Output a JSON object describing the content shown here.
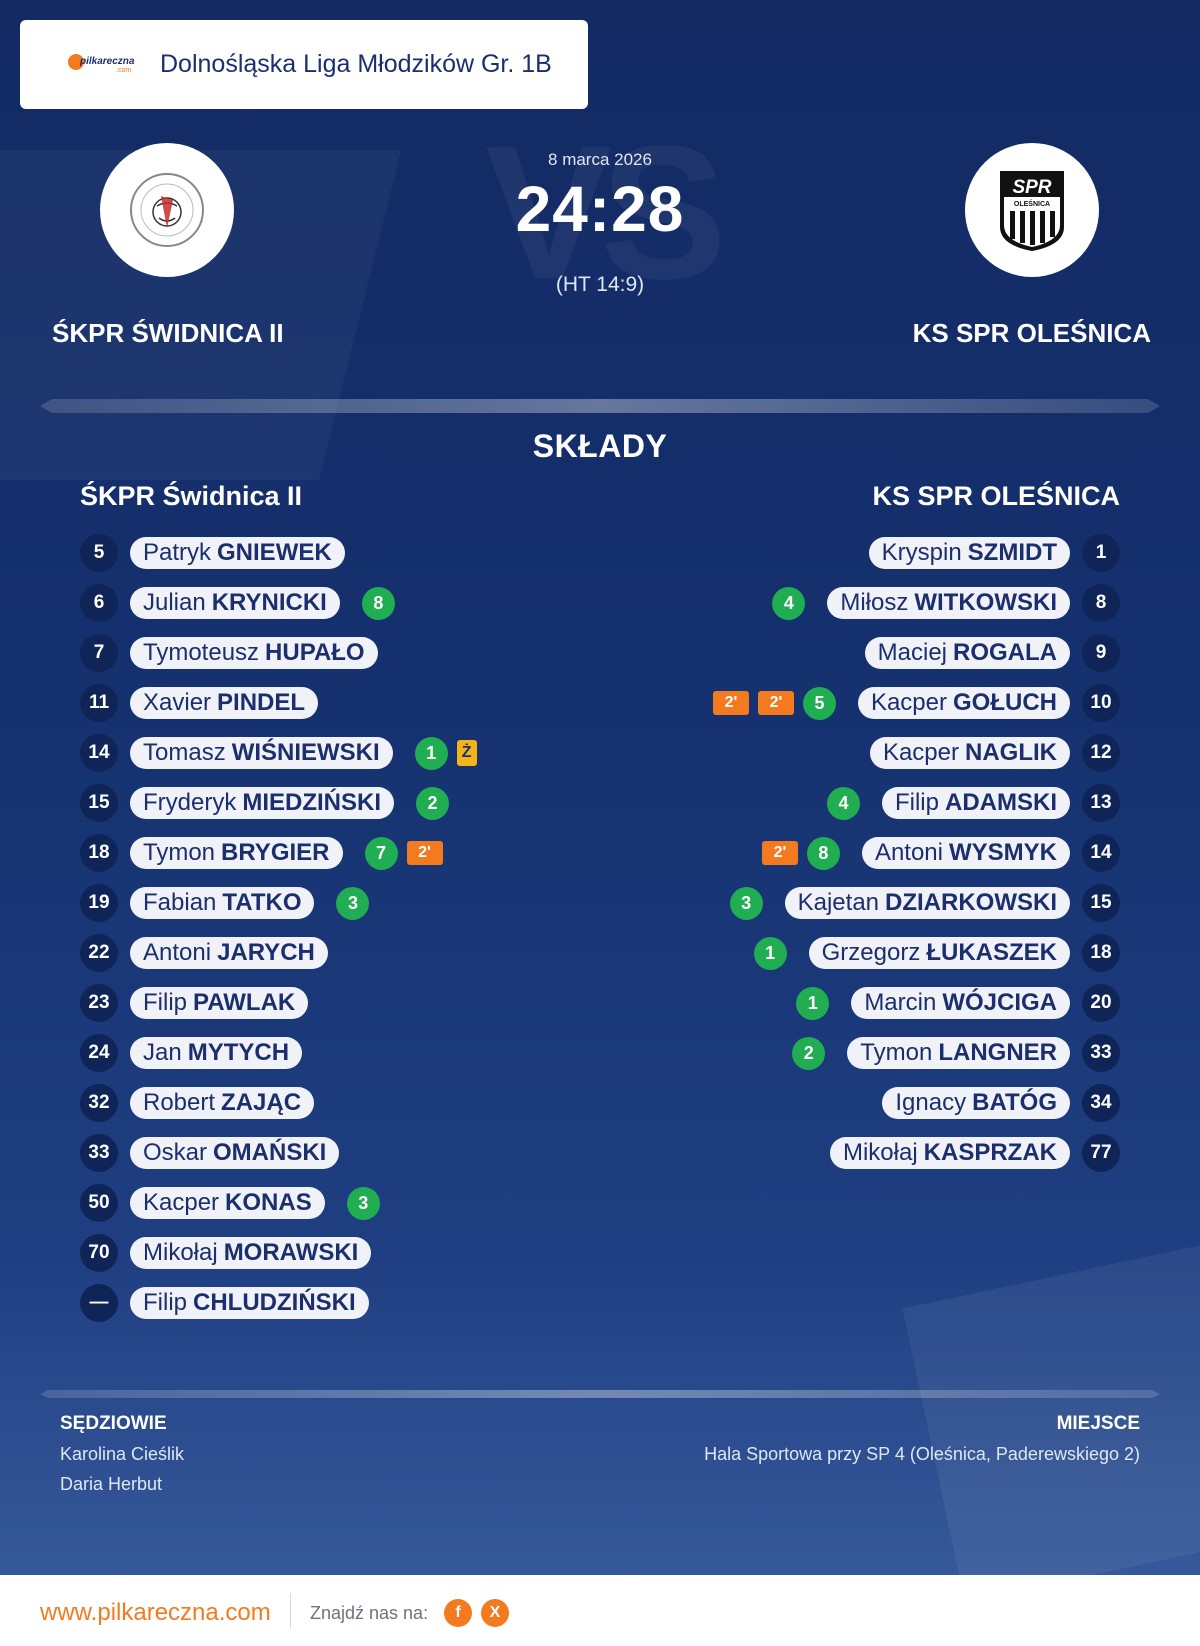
{
  "league": {
    "title": "Dolnośląska Liga Młodzików Gr. 1B",
    "logo_text": "pilkareczna",
    "logo_sub": ".com"
  },
  "match": {
    "date": "8 marca 2026",
    "score": "24:28",
    "half_time": "(HT 14:9)",
    "watermark": "VS"
  },
  "home": {
    "name": "ŚKPR ŚWIDNICA II",
    "lineup_title": "ŚKPR Świdnica II",
    "players": [
      {
        "num": "5",
        "first": "Patryk",
        "last": "GNIEWEK",
        "goals": "",
        "cards": []
      },
      {
        "num": "6",
        "first": "Julian",
        "last": "KRYNICKI",
        "goals": "8",
        "cards": []
      },
      {
        "num": "7",
        "first": "Tymoteusz",
        "last": "HUPAŁO",
        "goals": "",
        "cards": []
      },
      {
        "num": "11",
        "first": "Xavier",
        "last": "PINDEL",
        "goals": "",
        "cards": []
      },
      {
        "num": "14",
        "first": "Tomasz",
        "last": "WIŚNIEWSKI",
        "goals": "1",
        "cards": [
          {
            "type": "yellow",
            "text": "Ż"
          }
        ]
      },
      {
        "num": "15",
        "first": "Fryderyk",
        "last": "MIEDZIŃSKI",
        "goals": "2",
        "cards": []
      },
      {
        "num": "18",
        "first": "Tymon",
        "last": "BRYGIER",
        "goals": "7",
        "cards": [
          {
            "type": "susp",
            "text": "2'"
          }
        ]
      },
      {
        "num": "19",
        "first": "Fabian",
        "last": "TATKO",
        "goals": "3",
        "cards": []
      },
      {
        "num": "22",
        "first": "Antoni",
        "last": "JARYCH",
        "goals": "",
        "cards": []
      },
      {
        "num": "23",
        "first": "Filip",
        "last": "PAWLAK",
        "goals": "",
        "cards": []
      },
      {
        "num": "24",
        "first": "Jan",
        "last": "MYTYCH",
        "goals": "",
        "cards": []
      },
      {
        "num": "32",
        "first": "Robert",
        "last": "ZAJĄC",
        "goals": "",
        "cards": []
      },
      {
        "num": "33",
        "first": "Oskar",
        "last": "OMAŃSKI",
        "goals": "",
        "cards": []
      },
      {
        "num": "50",
        "first": "Kacper",
        "last": "KONAS",
        "goals": "3",
        "cards": []
      },
      {
        "num": "70",
        "first": "Mikołaj",
        "last": "MORAWSKI",
        "goals": "",
        "cards": []
      },
      {
        "num": "—",
        "first": "Filip",
        "last": "CHLUDZIŃSKI",
        "goals": "",
        "cards": []
      }
    ]
  },
  "away": {
    "name": "KS SPR OLEŚNICA",
    "lineup_title": "KS SPR OLEŚNICA",
    "logo_text": "SPR",
    "logo_sub": "OLEŚNICA",
    "players": [
      {
        "num": "1",
        "first": "Kryspin",
        "last": "SZMIDT",
        "goals": "",
        "cards": []
      },
      {
        "num": "8",
        "first": "Miłosz",
        "last": "WITKOWSKI",
        "goals": "4",
        "cards": []
      },
      {
        "num": "9",
        "first": "Maciej",
        "last": "ROGALA",
        "goals": "",
        "cards": []
      },
      {
        "num": "10",
        "first": "Kacper",
        "last": "GOŁUCH",
        "goals": "5",
        "cards": [
          {
            "type": "susp",
            "text": "2'"
          },
          {
            "type": "susp",
            "text": "2'"
          }
        ]
      },
      {
        "num": "12",
        "first": "Kacper",
        "last": "NAGLIK",
        "goals": "",
        "cards": []
      },
      {
        "num": "13",
        "first": "Filip",
        "last": "ADAMSKI",
        "goals": "4",
        "cards": []
      },
      {
        "num": "14",
        "first": "Antoni",
        "last": "WYSMYK",
        "goals": "8",
        "cards": [
          {
            "type": "susp",
            "text": "2'"
          }
        ]
      },
      {
        "num": "15",
        "first": "Kajetan",
        "last": "DZIARKOWSKI",
        "goals": "3",
        "cards": []
      },
      {
        "num": "18",
        "first": "Grzegorz",
        "last": "ŁUKASZEK",
        "goals": "1",
        "cards": []
      },
      {
        "num": "20",
        "first": "Marcin",
        "last": "WÓJCIGA",
        "goals": "1",
        "cards": []
      },
      {
        "num": "33",
        "first": "Tymon",
        "last": "LANGNER",
        "goals": "2",
        "cards": []
      },
      {
        "num": "34",
        "first": "Ignacy",
        "last": "BATÓG",
        "goals": "",
        "cards": []
      },
      {
        "num": "77",
        "first": "Mikołaj",
        "last": "KASPRZAK",
        "goals": "",
        "cards": []
      }
    ]
  },
  "section_title": "SKŁADY",
  "referees": {
    "label": "SĘDZIOWIE",
    "names": [
      "Karolina Cieślik",
      "Daria Herbut"
    ]
  },
  "venue": {
    "label": "MIEJSCE",
    "text": "Hala Sportowa przy SP 4 (Oleśnica, Paderewskiego 2)"
  },
  "footer": {
    "site": "www.pilkareczna.com",
    "find_us": "Znajdź nas na:",
    "social": [
      {
        "icon": "facebook-icon",
        "glyph": "f"
      },
      {
        "icon": "x-icon",
        "glyph": "X"
      }
    ]
  },
  "colors": {
    "navy": "#0f2457",
    "goal_green": "#21ad52",
    "suspension_orange": "#f47a20",
    "yellow_card": "#f4b417"
  }
}
